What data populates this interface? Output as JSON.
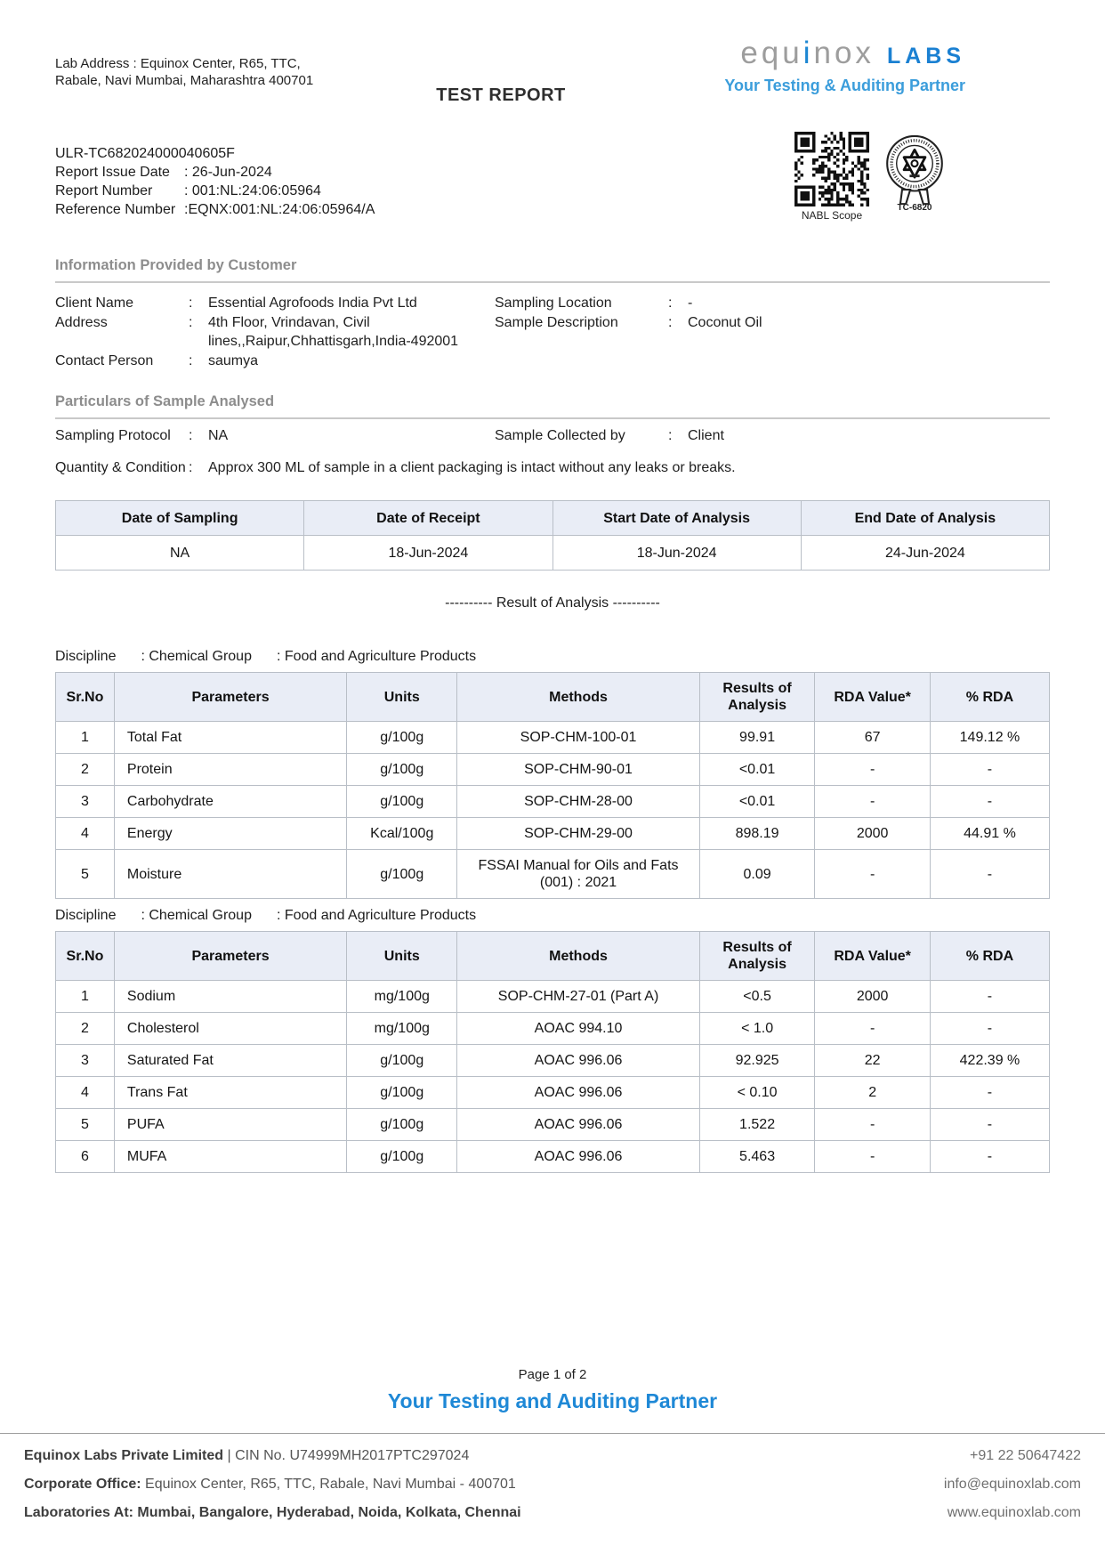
{
  "colors": {
    "brand_blue": "#1a80d2",
    "brand_light_blue": "#3b9ddb",
    "footer_tagline_blue": "#1e88d6",
    "table_header_bg": "#e9edf6",
    "section_title_gray": "#8d8d8d"
  },
  "header": {
    "lab_address_line1": "Lab Address : Equinox Center, R65, TTC,",
    "lab_address_line2": "Rabale, Navi Mumbai, Maharashtra 400701",
    "title": "TEST REPORT",
    "logo": {
      "part1": "equ",
      "part2": "i",
      "part3": "nox",
      "labs": "LABS",
      "tagline": "Your Testing & Auditing Partner"
    },
    "qr_caption": "NABL Scope",
    "seal_caption": "TC-6820"
  },
  "report_ids": {
    "ulr": "ULR-TC682024000040605F",
    "rows": [
      {
        "label": "Report Issue Date",
        "value": ": 26-Jun-2024"
      },
      {
        "label": "Report Number",
        "value": ": 001:NL:24:06:05964"
      },
      {
        "label": "Reference Number",
        "value": ":EQNX:001:NL:24:06:05964/A"
      }
    ]
  },
  "customer": {
    "section_title": "Information Provided by Customer",
    "left": [
      {
        "label": "Client Name",
        "value": "Essential Agrofoods India Pvt Ltd"
      },
      {
        "label": "Address",
        "value": "4th Floor, Vrindavan, Civil lines,,Raipur,Chhattisgarh,India-492001"
      },
      {
        "label": "Contact Person",
        "value": "saumya"
      }
    ],
    "right": [
      {
        "label": "Sampling Location",
        "value": "-"
      },
      {
        "label": "Sample Description",
        "value": "Coconut Oil"
      }
    ]
  },
  "particulars": {
    "section_title": "Particulars of Sample Analysed",
    "protocol_label": "Sampling Protocol",
    "protocol_value": "NA",
    "collected_label": "Sample Collected by",
    "collected_value": "Client",
    "quantity_label": "Quantity & Condition",
    "quantity_value": "Approx 300 ML of sample in a client packaging is intact without any leaks or breaks."
  },
  "date_table": {
    "headers": [
      "Date of Sampling",
      "Date of Receipt",
      "Start Date of Analysis",
      "End Date of Analysis"
    ],
    "values": [
      "NA",
      "18-Jun-2024",
      "18-Jun-2024",
      "24-Jun-2024"
    ]
  },
  "result_divider": "----------  Result of Analysis  ----------",
  "results_tables": [
    {
      "discipline_label": "Discipline",
      "discipline_group": ": Chemical Group",
      "discipline_category": ": Food and Agriculture Products",
      "headers": [
        "Sr.No",
        "Parameters",
        "Units",
        "Methods",
        "Results of Analysis",
        "RDA Value*",
        "% RDA"
      ],
      "rows": [
        [
          "1",
          "Total Fat",
          "g/100g",
          "SOP-CHM-100-01",
          "99.91",
          "67",
          "149.12 %"
        ],
        [
          "2",
          "Protein",
          "g/100g",
          "SOP-CHM-90-01",
          "<0.01",
          "-",
          "-"
        ],
        [
          "3",
          "Carbohydrate",
          "g/100g",
          "SOP-CHM-28-00",
          "<0.01",
          "-",
          "-"
        ],
        [
          "4",
          "Energy",
          "Kcal/100g",
          "SOP-CHM-29-00",
          "898.19",
          "2000",
          "44.91 %"
        ],
        [
          "5",
          "Moisture",
          "g/100g",
          "FSSAI Manual for Oils and Fats (001) : 2021",
          "0.09",
          "-",
          "-"
        ]
      ]
    },
    {
      "discipline_label": "Discipline",
      "discipline_group": ": Chemical Group",
      "discipline_category": ": Food and Agriculture Products",
      "headers": [
        "Sr.No",
        "Parameters",
        "Units",
        "Methods",
        "Results of Analysis",
        "RDA Value*",
        "% RDA"
      ],
      "rows": [
        [
          "1",
          "Sodium",
          "mg/100g",
          "SOP-CHM-27-01 (Part A)",
          "<0.5",
          "2000",
          "-"
        ],
        [
          "2",
          "Cholesterol",
          "mg/100g",
          "AOAC 994.10",
          "< 1.0",
          "-",
          "-"
        ],
        [
          "3",
          "Saturated Fat",
          "g/100g",
          "AOAC 996.06",
          "92.925",
          "22",
          "422.39 %"
        ],
        [
          "4",
          "Trans Fat",
          "g/100g",
          "AOAC 996.06",
          "< 0.10",
          "2",
          "-"
        ],
        [
          "5",
          "PUFA",
          "g/100g",
          "AOAC 996.06",
          "1.522",
          "-",
          "-"
        ],
        [
          "6",
          "MUFA",
          "g/100g",
          "AOAC 996.06",
          "5.463",
          "-",
          "-"
        ]
      ]
    }
  ],
  "footer": {
    "page": "Page 1 of 2",
    "tagline": "Your Testing and Auditing Partner",
    "rows": [
      {
        "bold": "Equinox Labs Private Limited",
        "rest": " | CIN No. U74999MH2017PTC297024",
        "right": "+91 22 50647422"
      },
      {
        "bold": "Corporate Office:",
        "rest": " Equinox Center, R65, TTC, Rabale, Navi Mumbai - 400701",
        "right": "info@equinoxlab.com"
      },
      {
        "bold": "Laboratories At: Mumbai, Bangalore, Hyderabad, Noida, Kolkata, Chennai",
        "rest": "",
        "right": "www.equinoxlab.com"
      }
    ]
  }
}
